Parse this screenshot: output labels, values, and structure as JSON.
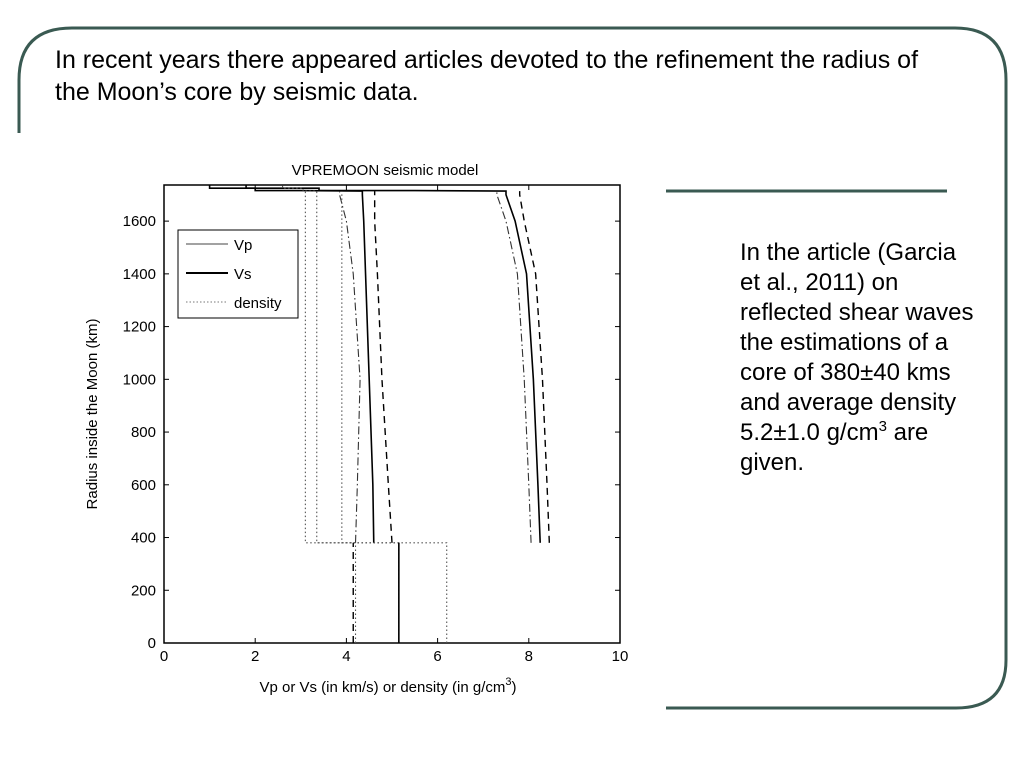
{
  "slide": {
    "title": "In recent years there appeared articles devoted to the refinement the radius of the Moon’s core by seismic data.",
    "side_text_main": "In the article (Garcia et al., 2011) on reflected shear waves the estimations of a core of 380±40 kms and average density 5.2±1.0 g/cm",
    "side_text_sup": "3",
    "side_text_end": " are given.",
    "frame_color": "#3a5a52"
  },
  "chart_data": {
    "type": "line",
    "title": "VPREMOON seismic model",
    "xlabel": "Vp or Vs (in km/s) or density (in   g/cm",
    "xlabel_sup": "3",
    "xlabel_close": ")",
    "ylabel": "Radius inside the Moon (km)",
    "xlim": [
      0,
      10
    ],
    "ylim": [
      0,
      1737
    ],
    "xticks": [
      0,
      2,
      4,
      6,
      8,
      10
    ],
    "yticks": [
      0,
      200,
      400,
      600,
      800,
      1000,
      1200,
      1400,
      1600
    ],
    "grid": false,
    "legend_position": "top-left",
    "series": [
      {
        "name": "Vp",
        "style": "solid",
        "x": [
          8.25,
          8.2,
          8.1,
          7.95,
          7.7,
          7.5,
          7.5,
          5.5,
          3.4,
          3.4,
          1.8,
          1.8
        ],
        "y": [
          380,
          600,
          1000,
          1400,
          1600,
          1700,
          1714,
          1716,
          1716,
          1725,
          1725,
          1737
        ]
      },
      {
        "name": "Vp",
        "style": "dashed",
        "x": [
          8.45,
          8.4,
          8.3,
          8.15,
          7.9,
          7.8,
          7.8
        ],
        "y": [
          380,
          600,
          1000,
          1400,
          1600,
          1700,
          1714
        ]
      },
      {
        "name": "Vp",
        "style": "dashdot",
        "x": [
          8.05,
          8.0,
          7.9,
          7.75,
          7.5,
          7.3,
          7.3
        ],
        "y": [
          380,
          600,
          1000,
          1400,
          1600,
          1700,
          1714
        ]
      },
      {
        "name": "Vs",
        "style": "solid",
        "x": [
          4.6,
          4.58,
          4.5,
          4.42,
          4.38,
          4.35,
          4.35,
          3.0,
          2.0,
          2.0,
          1.0,
          1.0
        ],
        "y": [
          380,
          600,
          1000,
          1400,
          1600,
          1700,
          1714,
          1716,
          1716,
          1725,
          1725,
          1737
        ]
      },
      {
        "name": "Vs",
        "style": "dashed",
        "x": [
          5.0,
          4.92,
          4.78,
          4.68,
          4.62,
          4.62
        ],
        "y": [
          380,
          600,
          1000,
          1400,
          1600,
          1714
        ]
      },
      {
        "name": "Vs",
        "style": "dashdot",
        "x": [
          4.2,
          4.24,
          4.3,
          4.15,
          4.0,
          3.85,
          3.85
        ],
        "y": [
          380,
          600,
          1000,
          1400,
          1600,
          1700,
          1714
        ]
      },
      {
        "name": "density",
        "style": "dotted",
        "x": [
          5.15,
          5.15,
          3.35,
          3.35,
          3.05,
          3.05,
          2.6,
          2.6
        ],
        "y": [
          0,
          380,
          380,
          1714,
          1714,
          1725,
          1725,
          1737
        ]
      },
      {
        "name": "density",
        "style": "dotted",
        "x": [
          6.2,
          6.2,
          3.9,
          3.9
        ],
        "y": [
          0,
          380,
          380,
          1714
        ]
      },
      {
        "name": "density",
        "style": "dotted",
        "x": [
          4.2,
          4.2,
          3.1,
          3.1
        ],
        "y": [
          0,
          380,
          380,
          1714
        ]
      },
      {
        "name": "Vs",
        "style": "dashed",
        "x": [
          4.15,
          4.15
        ],
        "y": [
          0,
          380
        ]
      },
      {
        "name": "Vs",
        "style": "solid",
        "x": [
          5.15,
          5.15
        ],
        "y": [
          0,
          380
        ]
      }
    ],
    "legend": [
      "Vp",
      "Vs",
      "density"
    ]
  }
}
